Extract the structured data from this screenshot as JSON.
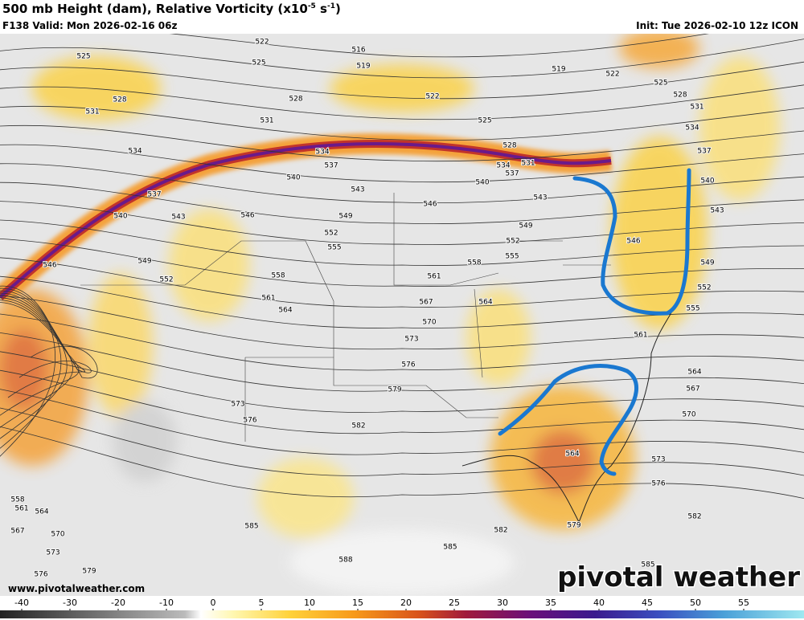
{
  "header": {
    "title": "500 mb Height (dam), Relative Vorticity (x10",
    "title_exp1": "-5",
    "title_unit": " s",
    "title_exp2": "-1",
    "title_close": ")",
    "valid": "F138 Valid: Mon 2026-02-16 06z",
    "init": "Init: Tue 2026-02-10 12z ICON"
  },
  "map": {
    "contour_labels": [
      "522",
      "516",
      "519",
      "519",
      "522",
      "525",
      "525",
      "525",
      "528",
      "528",
      "522",
      "525",
      "528",
      "531",
      "531",
      "531",
      "534",
      "534",
      "534",
      "528",
      "531",
      "537",
      "537",
      "534",
      "537",
      "540",
      "540",
      "540",
      "543",
      "543",
      "543",
      "546",
      "546",
      "546",
      "537",
      "540",
      "543",
      "549",
      "549",
      "552",
      "552",
      "555",
      "555",
      "549",
      "546",
      "552",
      "558",
      "558",
      "561",
      "561",
      "564",
      "567",
      "564",
      "570",
      "573",
      "576",
      "579",
      "582",
      "573",
      "576",
      "549",
      "552",
      "555",
      "561",
      "564",
      "567",
      "570",
      "573",
      "576",
      "579",
      "582",
      "582",
      "585",
      "585",
      "588",
      "585",
      "564",
      "558",
      "561",
      "564",
      "567",
      "570",
      "573",
      "576",
      "579"
    ],
    "watermark": "www.pivotalweather.com",
    "logo": "pivotal weather"
  },
  "colorbar": {
    "ticks": [
      -40,
      -30,
      -20,
      -10,
      0,
      5,
      10,
      15,
      20,
      25,
      30,
      35,
      40,
      45,
      50,
      55
    ]
  }
}
